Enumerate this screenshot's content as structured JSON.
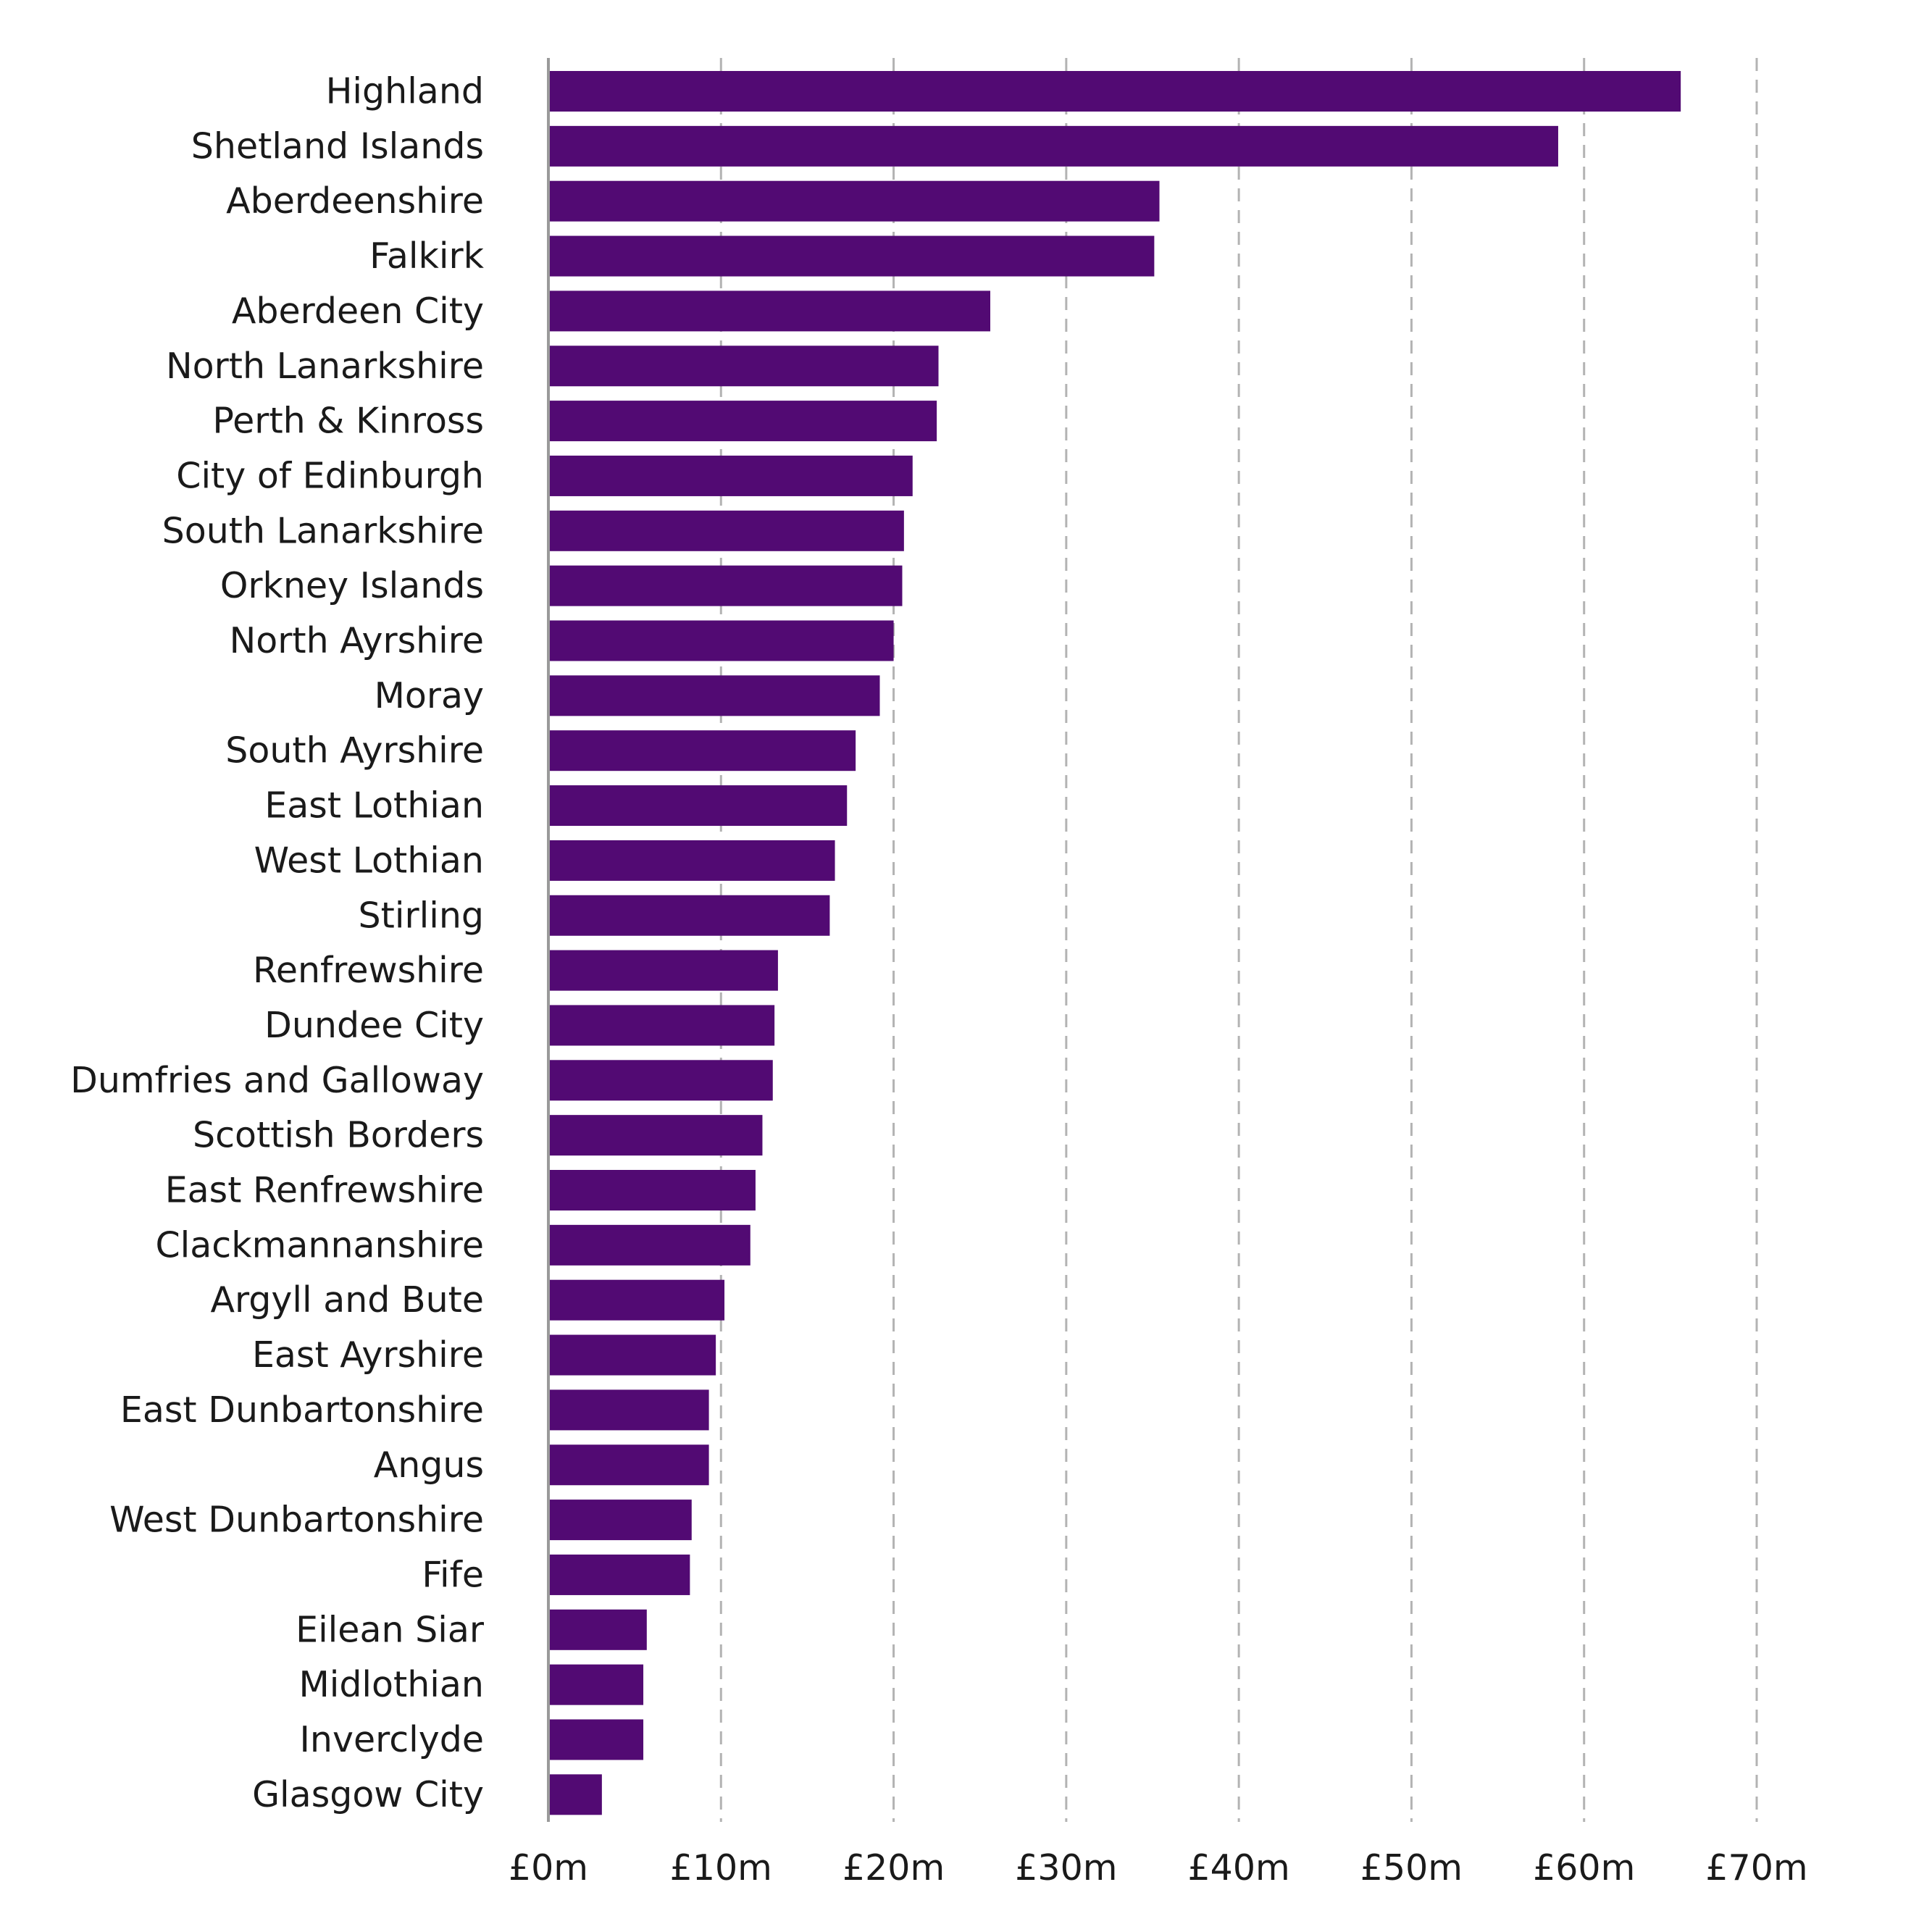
{
  "chart_data": {
    "type": "bar",
    "orientation": "horizontal",
    "title": "",
    "xlabel": "",
    "ylabel": "",
    "xlim": [
      0,
      70
    ],
    "x_ticks": [
      0,
      10,
      20,
      30,
      40,
      50,
      60,
      70
    ],
    "x_tick_labels": [
      "£0m",
      "£10m",
      "£20m",
      "£30m",
      "£40m",
      "£50m",
      "£60m",
      "£70m"
    ],
    "grid": "vertical dashed",
    "bar_color": "#520a73",
    "categories": [
      "Highland",
      "Shetland Islands",
      "Aberdeenshire",
      "Falkirk",
      "Aberdeen City",
      "North Lanarkshire",
      "Perth & Kinross",
      "City of Edinburgh",
      "South Lanarkshire",
      "Orkney Islands",
      "North Ayrshire",
      "Moray",
      "South Ayrshire",
      "East Lothian",
      "West Lothian",
      "Stirling",
      "Renfrewshire",
      "Dundee City",
      "Dumfries and Galloway",
      "Scottish Borders",
      "East Renfrewshire",
      "Clackmannanshire",
      "Argyll and Bute",
      "East Ayrshire",
      "East Dunbartonshire",
      "Angus",
      "West Dunbartonshire",
      "Fife",
      "Eilean Siar",
      "Midlothian",
      "Inverclyde",
      "Glasgow City"
    ],
    "values": [
      65.6,
      58.5,
      35.4,
      35.1,
      25.6,
      22.6,
      22.5,
      21.1,
      20.6,
      20.5,
      20.0,
      19.2,
      17.8,
      17.3,
      16.6,
      16.3,
      13.3,
      13.1,
      13.0,
      12.4,
      12.0,
      11.7,
      10.2,
      9.7,
      9.3,
      9.3,
      8.3,
      8.2,
      5.7,
      5.5,
      5.5,
      3.1
    ]
  }
}
